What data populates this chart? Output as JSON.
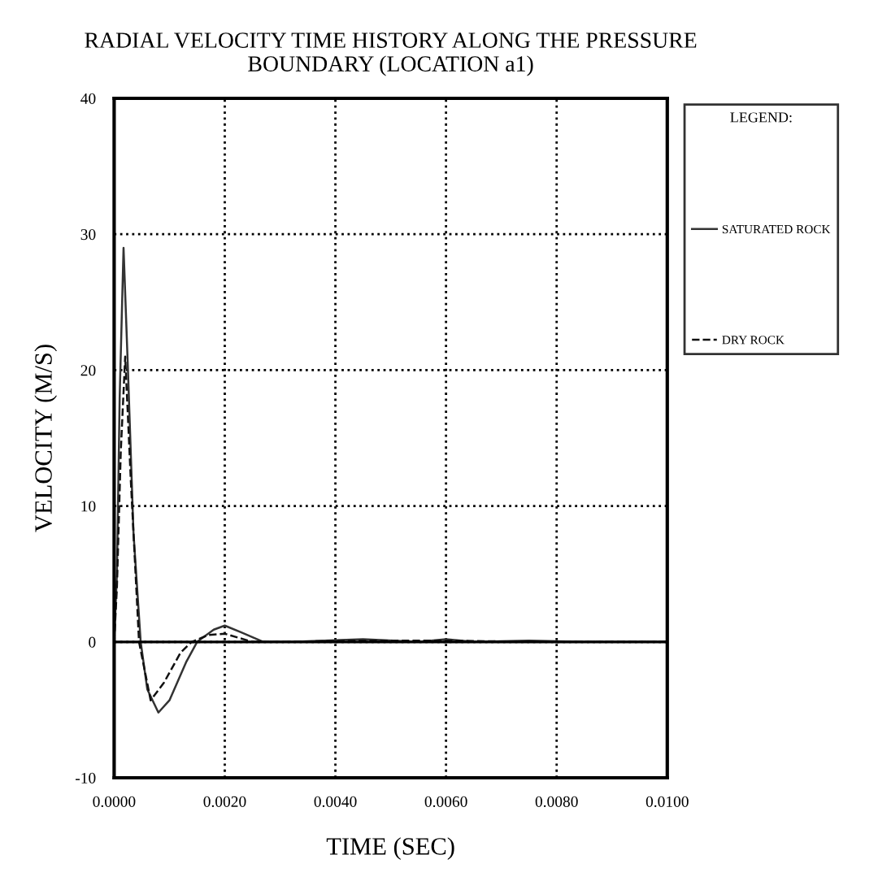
{
  "chart_data": {
    "type": "line",
    "title": "RADIAL VELOCITY TIME HISTORY ALONG THE PRESSURE\nBOUNDARY (LOCATION a1)",
    "xlabel": "TIME (SEC)",
    "ylabel": "VELOCITY (M/S)",
    "legend_title": "LEGEND:",
    "series": [
      {
        "name": "SATURATED ROCK",
        "color": "#333333",
        "line_style": "solid",
        "x": [
          0,
          5e-05,
          0.0001,
          0.00017,
          0.00025,
          0.00035,
          0.00048,
          0.0006,
          0.0008,
          0.001,
          0.0013,
          0.0015,
          0.0018,
          0.002,
          0.0023,
          0.0027,
          0.0032,
          0.0045,
          0.0055,
          0.006,
          0.0065,
          0.0075,
          0.0085,
          0.01
        ],
        "values": [
          0,
          5,
          18,
          29,
          20,
          8,
          0,
          -3.5,
          -5.2,
          -4.3,
          -1.5,
          0,
          0.9,
          1.2,
          0.7,
          0,
          0,
          0.2,
          0,
          0.2,
          0,
          0.1,
          0,
          0
        ]
      },
      {
        "name": "DRY ROCK",
        "color": "#111111",
        "line_style": "dashed",
        "x": [
          0,
          5e-05,
          0.00012,
          0.0002,
          0.0003,
          0.00045,
          0.00066,
          0.0009,
          0.0012,
          0.0014,
          0.0017,
          0.002,
          0.0025,
          0.003,
          0.0045,
          0.006,
          0.0075,
          0.01
        ],
        "values": [
          0,
          4,
          14,
          21,
          12,
          0,
          -4.3,
          -3,
          -0.8,
          0,
          0.5,
          0.6,
          0,
          0,
          0.1,
          0.1,
          0,
          0
        ]
      }
    ],
    "xlim": [
      0,
      0.01
    ],
    "xticks": [
      {
        "value": 0,
        "label": "0.0000"
      },
      {
        "value": 0.002,
        "label": "0.0020"
      },
      {
        "value": 0.004,
        "label": "0.0040"
      },
      {
        "value": 0.006,
        "label": "0.0060"
      },
      {
        "value": 0.008,
        "label": "0.0080"
      },
      {
        "value": 0.01,
        "label": "0.0100"
      }
    ],
    "ylim": [
      -10,
      40
    ],
    "yticks": [
      -10,
      0,
      10,
      20,
      30,
      40
    ],
    "ref_lines": [
      {
        "axis": "y",
        "value": 0,
        "color": "#000000"
      }
    ],
    "grid": true,
    "legend": "right"
  }
}
